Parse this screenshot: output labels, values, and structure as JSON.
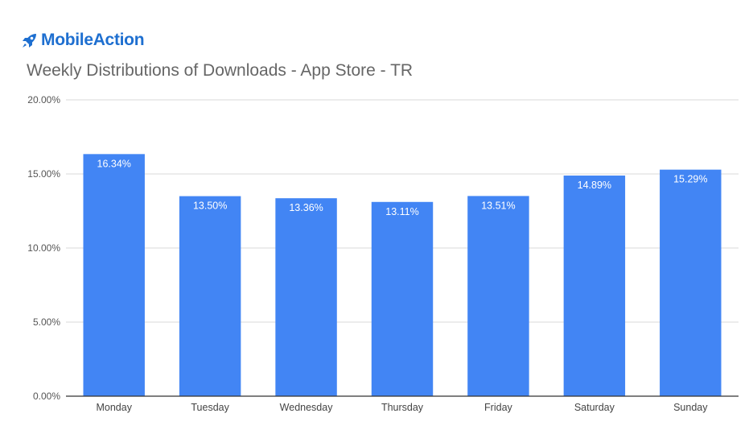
{
  "brand": {
    "name": "MobileAction",
    "logo_icon": "rocket-icon",
    "color": "#1e6fd0"
  },
  "chart_data": {
    "type": "bar",
    "title": "Weekly Distributions of Downloads - App Store - TR",
    "categories": [
      "Monday",
      "Tuesday",
      "Wednesday",
      "Thursday",
      "Friday",
      "Saturday",
      "Sunday"
    ],
    "values": [
      16.34,
      13.5,
      13.36,
      13.11,
      13.51,
      14.89,
      15.29
    ],
    "data_labels": [
      "16.34%",
      "13.50%",
      "13.36%",
      "13.11%",
      "13.51%",
      "14.89%",
      "15.29%"
    ],
    "yticks": [
      0,
      5,
      10,
      15,
      20
    ],
    "ytick_labels": [
      "0.00%",
      "5.00%",
      "10.00%",
      "15.00%",
      "20.00%"
    ],
    "ylim": [
      0,
      20
    ],
    "xlabel": "",
    "ylabel": "",
    "grid": true,
    "bar_color": "#4285f4"
  }
}
